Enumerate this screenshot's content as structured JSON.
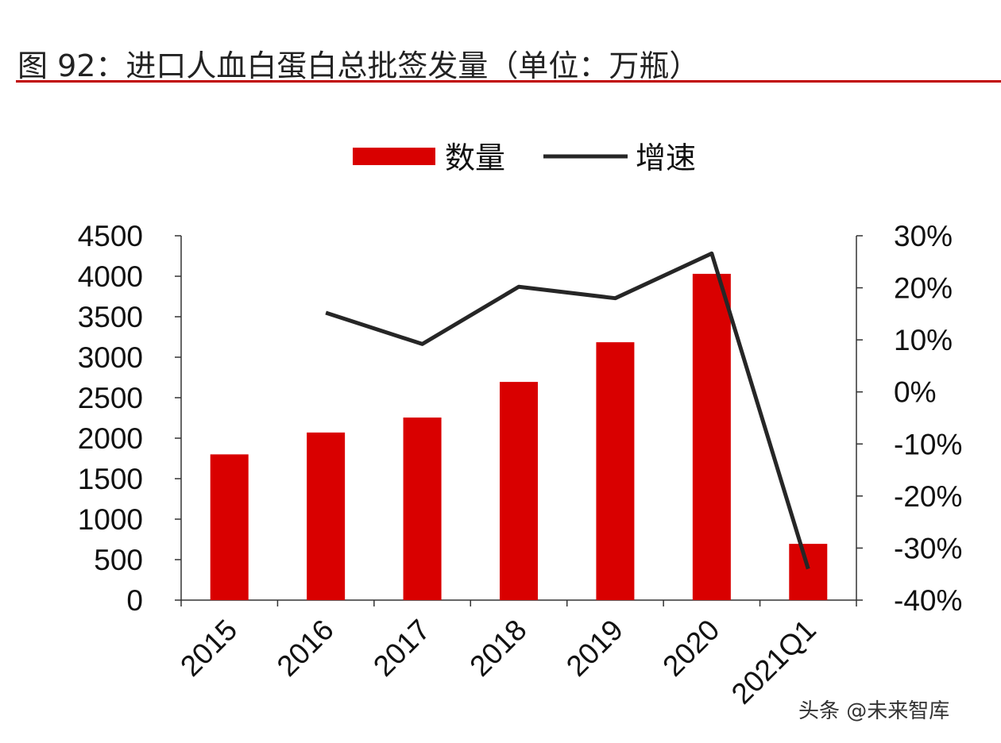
{
  "title": "图 92：进口人血白蛋白总批签发量（单位：万瓶）",
  "watermark": "头条 @未来智库",
  "chart_data": {
    "type": "bar+line",
    "categories": [
      "2015",
      "2016",
      "2017",
      "2018",
      "2019",
      "2020",
      "2021Q1"
    ],
    "series": [
      {
        "name": "数量",
        "type": "bar",
        "axis": "left",
        "color": "#d90000",
        "values": [
          1800,
          2070,
          2255,
          2695,
          3185,
          4030,
          695
        ]
      },
      {
        "name": "增速",
        "type": "line",
        "axis": "right",
        "color": "#262626",
        "values": [
          null,
          15.2,
          9.2,
          20.2,
          18.0,
          26.6,
          -34.0
        ]
      }
    ],
    "left_axis": {
      "ylim": [
        0,
        4500
      ],
      "ticks": [
        "0",
        "500",
        "1000",
        "1500",
        "2000",
        "2500",
        "3000",
        "3500",
        "4000",
        "4500"
      ]
    },
    "right_axis": {
      "ylim": [
        -40,
        30
      ],
      "unit": "%",
      "ticks": [
        "-40%",
        "-30%",
        "-20%",
        "-10%",
        "0%",
        "10%",
        "20%",
        "30%"
      ]
    },
    "legend": "top-center",
    "grid": false
  }
}
